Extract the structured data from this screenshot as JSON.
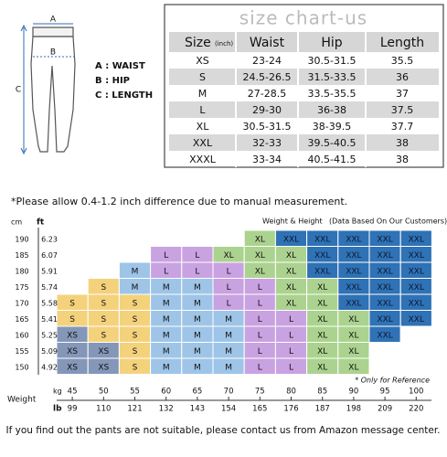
{
  "illustration": {
    "labels": [
      "A",
      "B",
      "C"
    ]
  },
  "legend": [
    "A : WAIST",
    "B : HIP",
    "C : LENGTH"
  ],
  "size_chart": {
    "title": "size chart-us",
    "header": {
      "size": "Size",
      "unit": "(inch)",
      "columns": [
        "Waist",
        "Hip",
        "Length"
      ]
    },
    "rows": [
      [
        "XS",
        "23-24",
        "30.5-31.5",
        35.5
      ],
      [
        "S",
        "24.5-26.5",
        "31.5-33.5",
        36
      ],
      [
        "M",
        "27-28.5",
        "33.5-35.5",
        37
      ],
      [
        "L",
        "29-30",
        "36-38",
        37.5
      ],
      [
        "XL",
        "30.5-31.5",
        "38-39.5",
        37.7
      ],
      [
        "XXL",
        "32-33",
        "39.5-40.5",
        38
      ],
      [
        "XXXL",
        "33-34",
        "40.5-41.5",
        38
      ]
    ]
  },
  "note": "*Please allow 0.4-1.2 inch difference due to manual measurement.",
  "weight_height": {
    "title": "Weight & Height",
    "subtitle": "(Data Based On Our Customers)",
    "height_units": [
      "cm",
      "ft"
    ],
    "cm": [
      190,
      185,
      180,
      175,
      170,
      165,
      160,
      155,
      150
    ],
    "ft": [
      6.23,
      6.07,
      5.91,
      5.74,
      5.58,
      5.41,
      5.25,
      5.09,
      4.92
    ],
    "weight_label": "Weight",
    "weight_units": [
      "kg",
      "lb"
    ],
    "kg": [
      45,
      50,
      55,
      60,
      65,
      70,
      75,
      80,
      85,
      90,
      95,
      100
    ],
    "lb": [
      99,
      110,
      121,
      132,
      143,
      154,
      165,
      176,
      187,
      198,
      209,
      220
    ],
    "grid": [
      [
        null,
        null,
        null,
        null,
        null,
        null,
        "XL",
        "XXL",
        "XXL",
        "XXL",
        "XXL",
        "XXL"
      ],
      [
        null,
        null,
        null,
        "L",
        "L",
        "XL",
        "XL",
        "XL",
        "XXL",
        "XXL",
        "XXL",
        "XXL"
      ],
      [
        null,
        null,
        "M",
        "L",
        "L",
        "L",
        "XL",
        "XL",
        "XXL",
        "XXL",
        "XXL",
        "XXL"
      ],
      [
        null,
        "S",
        "M",
        "M",
        "M",
        "L",
        "L",
        "XL",
        "XL",
        "XXL",
        "XXL",
        "XXL"
      ],
      [
        "S",
        "S",
        "S",
        "M",
        "M",
        "L",
        "L",
        "XL",
        "XL",
        "XXL",
        "XXL",
        "XXL"
      ],
      [
        "S",
        "S",
        "S",
        "M",
        "M",
        "M",
        "L",
        "L",
        "XL",
        "XL",
        "XXL",
        "XXL"
      ],
      [
        "XS",
        "S",
        "S",
        "M",
        "M",
        "M",
        "L",
        "L",
        "XL",
        "XL",
        "XXL",
        null
      ],
      [
        "XS",
        "XS",
        "S",
        "M",
        "M",
        "M",
        "L",
        "L",
        "XL",
        "XL",
        null,
        null
      ],
      [
        "XS",
        "XS",
        "S",
        "M",
        "M",
        "M",
        "L",
        "L",
        "XL",
        "XL",
        null,
        null
      ]
    ],
    "size_colors": {
      "XS": "#8497b8",
      "S": "#f4d27c",
      "M": "#9ec5e8",
      "L": "#c9a2e2",
      "XL": "#abd38f",
      "XXL": "#2f72b5"
    },
    "footnote": "* Only for Reference"
  },
  "footer": "If you find out the pants are not suitable, please contact us from Amazon message center."
}
